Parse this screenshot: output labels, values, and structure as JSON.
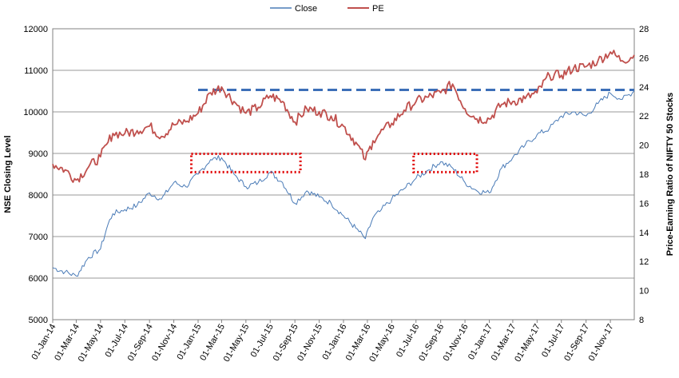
{
  "chart_data": {
    "type": "line",
    "legend": {
      "position": "top",
      "items": [
        "Close",
        "PE"
      ]
    },
    "grid": true,
    "colors": {
      "close": "#4a7bb7",
      "pe": "#c0504d",
      "reference_line": "#3d6fb8",
      "highlight_box": "#e00000",
      "gridline": "#9a9a9a"
    },
    "left_axis": {
      "label": "NSE Closing Level",
      "min": 5000,
      "max": 12000,
      "ticks": [
        "5000",
        "6000",
        "7000",
        "8000",
        "9000",
        "10000",
        "11000",
        "12000"
      ]
    },
    "right_axis": {
      "label": "Price-Earning Ratio of NIFTY 50 Stocks",
      "min": 8,
      "max": 28,
      "ticks": [
        "8",
        "10",
        "12",
        "14",
        "16",
        "18",
        "20",
        "22",
        "24",
        "26",
        "28"
      ]
    },
    "x_axis": {
      "start": "2014-01-01",
      "end": "2017-12-31",
      "tick_labels": [
        "01-Jan-14",
        "01-Mar-14",
        "01-May-14",
        "01-Jul-14",
        "01-Sep-14",
        "01-Nov-14",
        "01-Jan-15",
        "01-Mar-15",
        "01-May-15",
        "01-Jul-15",
        "01-Sep-15",
        "01-Nov-15",
        "01-Jan-16",
        "01-Mar-16",
        "01-May-16",
        "01-Jul-16",
        "01-Sep-16",
        "01-Nov-16",
        "01-Jan-17",
        "01-Mar-17",
        "01-May-17",
        "01-Jul-17",
        "01-Sep-17",
        "01-Nov-17"
      ]
    },
    "series": [
      {
        "name": "Close",
        "axis": "left",
        "x": [
          "2014-01-01",
          "2014-02-01",
          "2014-03-01",
          "2014-04-01",
          "2014-05-01",
          "2014-05-20",
          "2014-06-01",
          "2014-07-01",
          "2014-08-01",
          "2014-09-01",
          "2014-10-01",
          "2014-11-01",
          "2014-12-01",
          "2015-01-01",
          "2015-02-01",
          "2015-03-01",
          "2015-04-01",
          "2015-05-01",
          "2015-06-01",
          "2015-07-01",
          "2015-08-01",
          "2015-09-01",
          "2015-10-01",
          "2015-11-01",
          "2015-12-01",
          "2016-01-01",
          "2016-02-01",
          "2016-02-25",
          "2016-03-15",
          "2016-04-01",
          "2016-05-01",
          "2016-06-01",
          "2016-07-01",
          "2016-08-01",
          "2016-09-01",
          "2016-10-01",
          "2016-11-01",
          "2016-12-01",
          "2017-01-01",
          "2017-02-01",
          "2017-03-01",
          "2017-04-01",
          "2017-05-01",
          "2017-06-01",
          "2017-07-01",
          "2017-08-01",
          "2017-09-01",
          "2017-10-01",
          "2017-11-01",
          "2017-12-01",
          "2017-12-31"
        ],
        "values": [
          6250,
          6150,
          6050,
          6500,
          6700,
          7300,
          7550,
          7650,
          7750,
          8050,
          7900,
          8300,
          8200,
          8500,
          8850,
          8900,
          8500,
          8200,
          8300,
          8550,
          8300,
          7800,
          8100,
          7950,
          7800,
          7500,
          7200,
          6950,
          7450,
          7600,
          7900,
          8150,
          8400,
          8600,
          8800,
          8650,
          8300,
          8100,
          8050,
          8650,
          8900,
          9200,
          9450,
          9600,
          9900,
          10000,
          9900,
          10200,
          10450,
          10300,
          10500
        ]
      },
      {
        "name": "PE",
        "axis": "right",
        "x": [
          "2014-01-01",
          "2014-02-01",
          "2014-03-01",
          "2014-04-01",
          "2014-05-01",
          "2014-05-20",
          "2014-06-01",
          "2014-07-01",
          "2014-08-01",
          "2014-09-01",
          "2014-10-01",
          "2014-11-01",
          "2014-12-01",
          "2015-01-01",
          "2015-02-01",
          "2015-03-01",
          "2015-04-01",
          "2015-05-01",
          "2015-06-01",
          "2015-07-01",
          "2015-08-01",
          "2015-09-01",
          "2015-10-01",
          "2015-11-01",
          "2015-12-01",
          "2016-01-01",
          "2016-02-01",
          "2016-02-25",
          "2016-03-15",
          "2016-04-01",
          "2016-05-01",
          "2016-06-01",
          "2016-07-01",
          "2016-08-01",
          "2016-09-01",
          "2016-10-01",
          "2016-11-01",
          "2016-12-01",
          "2017-01-01",
          "2017-02-01",
          "2017-03-01",
          "2017-04-01",
          "2017-05-01",
          "2017-06-01",
          "2017-07-01",
          "2017-08-01",
          "2017-09-01",
          "2017-10-01",
          "2017-11-01",
          "2017-12-01",
          "2017-12-31"
        ],
        "values": [
          18.7,
          18.3,
          17.6,
          18.5,
          19.2,
          20.2,
          20.8,
          20.8,
          21.0,
          21.3,
          20.6,
          21.4,
          21.6,
          22.2,
          23.6,
          24.0,
          23.0,
          22.2,
          22.6,
          23.4,
          23.0,
          21.6,
          22.5,
          22.3,
          22.0,
          21.3,
          20.2,
          19.0,
          20.3,
          20.8,
          21.5,
          22.4,
          23.0,
          23.3,
          23.6,
          24.2,
          22.5,
          21.8,
          21.8,
          22.8,
          23.0,
          23.2,
          23.6,
          24.8,
          24.8,
          25.3,
          25.4,
          25.8,
          26.4,
          25.8,
          26.2
        ]
      }
    ],
    "annotations": [
      {
        "type": "horizontal_line",
        "axis": "right",
        "value": 23.8,
        "x_start": "2015-01-01",
        "x_end": "2017-12-31",
        "style": "dashed"
      },
      {
        "type": "dotted_box",
        "axis": "left",
        "x_start": "2014-12-15",
        "x_end": "2015-09-15",
        "y_min": 8550,
        "y_max": 8990
      },
      {
        "type": "dotted_box",
        "axis": "left",
        "x_start": "2016-06-25",
        "x_end": "2016-12-01",
        "y_min": 8550,
        "y_max": 8990
      }
    ]
  }
}
